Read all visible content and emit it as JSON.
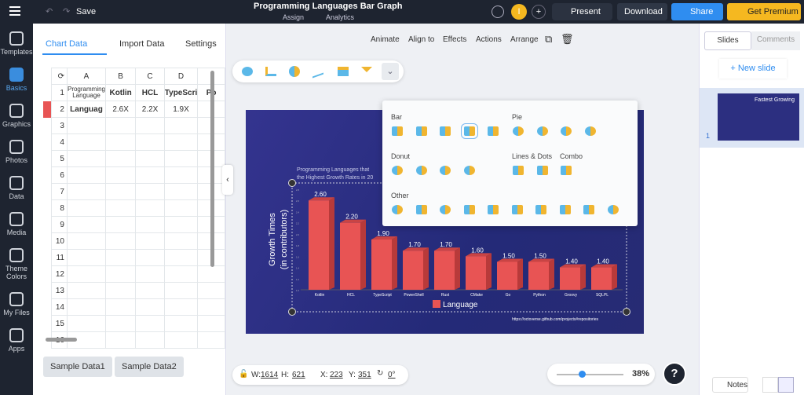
{
  "topbar": {
    "save": "Save",
    "title": "Programming Languages Bar Graph",
    "assign": "Assign",
    "analytics": "Analytics",
    "present": "Present",
    "download": "Download",
    "share": "Share",
    "premium": "Get Premium",
    "avatar": "I"
  },
  "sidebar": [
    {
      "label": "Templates"
    },
    {
      "label": "Basics"
    },
    {
      "label": "Graphics"
    },
    {
      "label": "Photos"
    },
    {
      "label": "Data"
    },
    {
      "label": "Media"
    },
    {
      "label": "Theme Colors"
    },
    {
      "label": "My Files"
    },
    {
      "label": "Apps"
    }
  ],
  "panel": {
    "tabs": [
      "Chart Data",
      "Import Data",
      "Settings"
    ],
    "columns": [
      "A",
      "B",
      "C",
      "D"
    ],
    "rows": [
      [
        "Programming Language",
        "Kotlin",
        "HCL",
        "TypeScri",
        "Po"
      ],
      [
        "Languag",
        "2.6X",
        "2.2X",
        "1.9X",
        ""
      ]
    ],
    "row_numbers": [
      "1",
      "2",
      "3",
      "4",
      "5",
      "6",
      "7",
      "8",
      "9",
      "10",
      "11",
      "12",
      "13",
      "14",
      "15",
      "16"
    ],
    "sample1": "Sample Data1",
    "sample2": "Sample Data2",
    "series_color": "#e85454"
  },
  "toolbar": [
    "Animate",
    "Align to",
    "Effects",
    "Actions",
    "Arrange"
  ],
  "popup": {
    "bar": "Bar",
    "pie": "Pie",
    "donut": "Donut",
    "lines": "Lines & Dots",
    "combo": "Combo",
    "other": "Other"
  },
  "chart_data": {
    "type": "bar",
    "title": "Programming Languages that ... the Highest Growth Rates in 20...",
    "ylabel": "Growth Times (in contributors)",
    "categories": [
      "Kotlin",
      "HCL",
      "TypeScript",
      "PowerShell",
      "Rust",
      "CMake",
      "Go",
      "Python",
      "Groovy",
      "SQLPL"
    ],
    "series": [
      {
        "name": "Language",
        "values": [
          2.6,
          2.2,
          1.9,
          1.7,
          1.7,
          1.6,
          1.5,
          1.5,
          1.4,
          1.4
        ],
        "color": "#e85454"
      }
    ],
    "data_labels": [
      "2.60",
      "2.20",
      "1.90",
      "1.70",
      "1.70",
      "1.60",
      "1.50",
      "1.50",
      "1.40",
      "1.40"
    ],
    "ylim": [
      1.0,
      2.8
    ],
    "legend": "bottom",
    "source": "https://octoverse.github.com/projects#repositories"
  },
  "bottom": {
    "w_label": "W:",
    "w": "1614",
    "h_label": "H:",
    "h": "621",
    "x_label": "X:",
    "x": "223",
    "y_label": "Y:",
    "y": "351",
    "rot": "0°",
    "zoom": "38%",
    "zoom_value": 38,
    "help": "?"
  },
  "right": {
    "slides": "Slides",
    "comments": "Comments",
    "new_slide": "+ New slide",
    "slide_num": "1",
    "thumb_title": "Fastest Growing",
    "notes": "Notes"
  }
}
